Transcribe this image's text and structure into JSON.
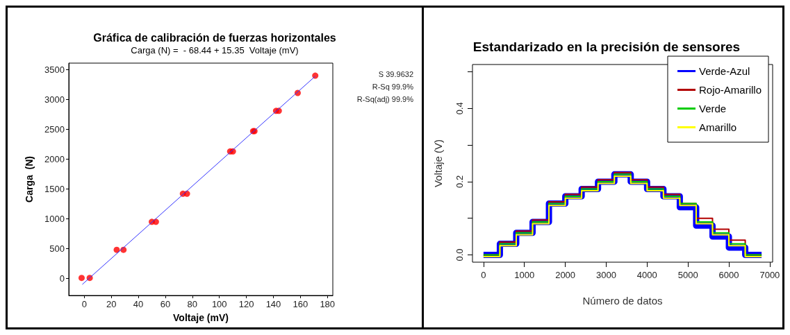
{
  "chart_data": [
    {
      "type": "scatter",
      "title": "Gráfica de calibración de fuerzas horizontales",
      "subtitle": "Carga (N) =  - 68.44 + 15.35  Voltaje (mV)",
      "xlabel": "Voltaje (mV)",
      "ylabel": "Carga  (N)",
      "annotations": [
        "S 39.9632",
        "R-Sq 99.9%",
        "R-Sq(adj) 99.9%"
      ],
      "xlim": [
        -11.5,
        184
      ],
      "ylim": [
        -285,
        3610
      ],
      "xticks": [
        0,
        20,
        40,
        60,
        80,
        100,
        120,
        140,
        160,
        180
      ],
      "yticks": [
        0,
        500,
        1000,
        1500,
        2000,
        2500,
        3000,
        3500
      ],
      "grid": false,
      "legend": false,
      "series": [
        {
          "type": "scatter",
          "marker": "circle",
          "color": "#ff0000",
          "x": [
            -2,
            4,
            24,
            29,
            50,
            53,
            73,
            76,
            108,
            110,
            125,
            126,
            142,
            144,
            158,
            171
          ],
          "values": [
            10,
            10,
            480,
            480,
            950,
            950,
            1420,
            1420,
            2130,
            2130,
            2470,
            2470,
            2810,
            2810,
            3110,
            3400
          ]
        },
        {
          "type": "line",
          "marker": "none",
          "color": "#3333ff",
          "x": [
            -1.5,
            171
          ],
          "values": [
            -100,
            3390
          ]
        }
      ]
    },
    {
      "type": "step",
      "title": "Estandarizado en la precisión de sensores",
      "xlabel": "Número de datos",
      "ylabel": "Voltaje (V)",
      "xlim": [
        -270,
        7070
      ],
      "ylim": [
        -0.02,
        0.52
      ],
      "xticks": [
        0,
        1000,
        2000,
        3000,
        4000,
        5000,
        6000,
        7000
      ],
      "yticks": [
        {
          "value": 0,
          "label": "0.0"
        },
        {
          "value": 0.1,
          "label": null
        },
        {
          "value": 0.2,
          "label": "0.2"
        },
        {
          "value": 0.3,
          "label": null
        },
        {
          "value": 0.4,
          "label": "0.4"
        },
        {
          "value": 0.5,
          "label": null
        }
      ],
      "grid": false,
      "legend": "top right",
      "marker": "none",
      "x": [
        0,
        400,
        800,
        1200,
        1600,
        2000,
        2400,
        2800,
        3200,
        3600,
        4000,
        4400,
        4800,
        5200,
        5600,
        6000,
        6400,
        6800
      ],
      "series": [
        {
          "name": "Verde-Azul",
          "color": "#0000ff",
          "values": [
            0,
            0.03,
            0.06,
            0.09,
            0.14,
            0.16,
            0.18,
            0.2,
            0.22,
            0.2,
            0.18,
            0.16,
            0.13,
            0.08,
            0.05,
            0.02,
            0,
            0
          ]
        },
        {
          "name": "Rojo-Amarillo",
          "color": "#b20000",
          "values": [
            0,
            0.035,
            0.065,
            0.095,
            0.145,
            0.165,
            0.185,
            0.205,
            0.225,
            0.205,
            0.185,
            0.165,
            0.14,
            0.1,
            0.07,
            0.04,
            0,
            0
          ]
        },
        {
          "name": "Verde",
          "color": "#00cc00",
          "values": [
            0,
            0.03,
            0.06,
            0.09,
            0.14,
            0.16,
            0.18,
            0.2,
            0.22,
            0.2,
            0.18,
            0.16,
            0.14,
            0.09,
            0.06,
            0.03,
            0,
            0
          ]
        },
        {
          "name": "Amarillo",
          "color": "#ffff00",
          "values": [
            -0.005,
            0.025,
            0.055,
            0.085,
            0.135,
            0.155,
            0.175,
            0.195,
            0.215,
            0.195,
            0.175,
            0.155,
            0.135,
            0.085,
            0.055,
            0.025,
            -0.005,
            -0.005
          ]
        }
      ]
    }
  ]
}
